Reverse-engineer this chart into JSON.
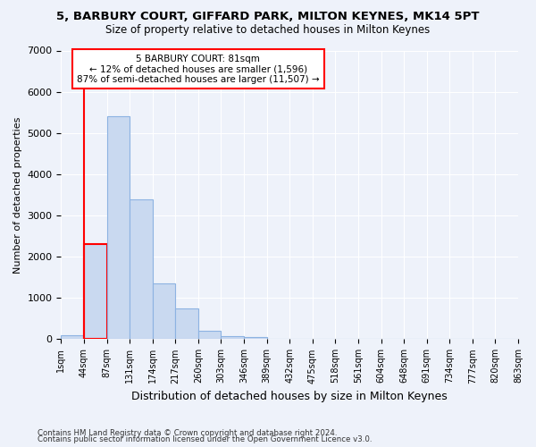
{
  "title": "5, BARBURY COURT, GIFFARD PARK, MILTON KEYNES, MK14 5PT",
  "subtitle": "Size of property relative to detached houses in Milton Keynes",
  "xlabel": "Distribution of detached houses by size in Milton Keynes",
  "ylabel": "Number of detached properties",
  "footnote1": "Contains HM Land Registry data © Crown copyright and database right 2024.",
  "footnote2": "Contains public sector information licensed under the Open Government Licence v3.0.",
  "annotation_title": "5 BARBURY COURT: 81sqm",
  "annotation_line2": "← 12% of detached houses are smaller (1,596)",
  "annotation_line3": "87% of semi-detached houses are larger (11,507) →",
  "bar_color": "#c9d9f0",
  "bar_edge_color": "#8db3e2",
  "highlight_color": "#ff0000",
  "background_color": "#eef2fa",
  "bin_labels": [
    "1sqm",
    "44sqm",
    "87sqm",
    "131sqm",
    "174sqm",
    "217sqm",
    "260sqm",
    "303sqm",
    "346sqm",
    "389sqm",
    "432sqm",
    "475sqm",
    "518sqm",
    "561sqm",
    "604sqm",
    "648sqm",
    "691sqm",
    "734sqm",
    "777sqm",
    "820sqm",
    "863sqm"
  ],
  "bar_values": [
    100,
    2300,
    5400,
    3400,
    1350,
    750,
    200,
    70,
    60,
    0,
    0,
    0,
    0,
    0,
    0,
    0,
    0,
    0,
    0,
    0
  ],
  "highlight_bar_index": 1,
  "ylim": [
    0,
    7000
  ],
  "yticks": [
    0,
    1000,
    2000,
    3000,
    4000,
    5000,
    6000,
    7000
  ]
}
